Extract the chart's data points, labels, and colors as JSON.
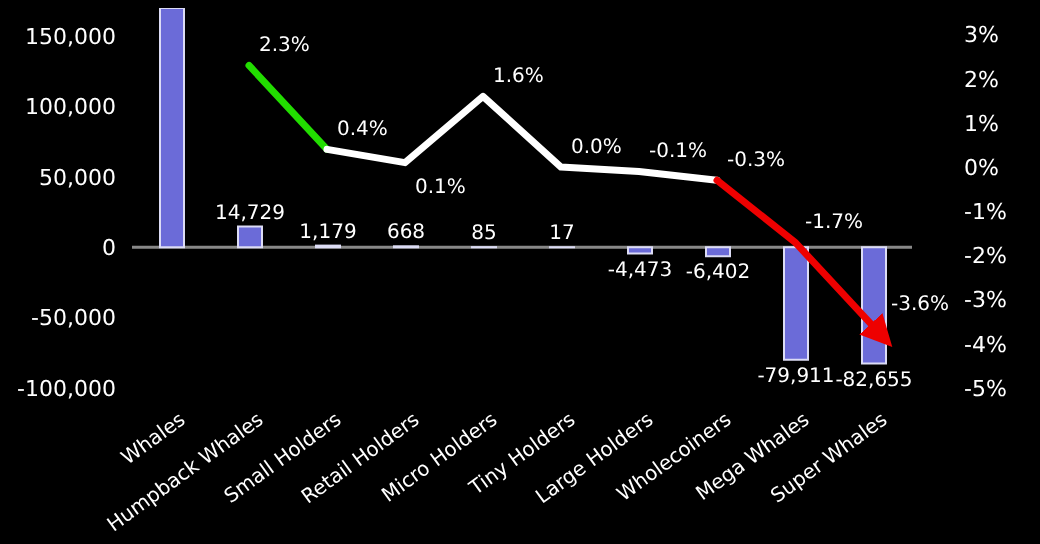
{
  "chart_data": {
    "type": "bar",
    "categories": [
      "Whales",
      "Humpback Whales",
      "Small Holders",
      "Retail Holders",
      "Micro Holders",
      "Tiny Holders",
      "Large Holders",
      "Wholecoiners",
      "Mega Whales",
      "Super Whales"
    ],
    "series": [
      {
        "color": "#6b6bd8",
        "values": [
          170000,
          14729,
          1179,
          668,
          85,
          17,
          -4473,
          -6402,
          -79911,
          -82655
        ],
        "value_labels": [
          null,
          "14,729",
          "1,179",
          "668",
          "85",
          "17",
          "-4,473",
          "-6,402",
          "-79,911",
          "-82,655"
        ]
      },
      {
        "type": "line",
        "axis": "y2",
        "color": "#22dd00",
        "values": [
          null,
          2.3,
          0.4,
          null,
          null,
          null,
          null,
          null,
          null,
          null
        ],
        "value_labels": [
          null,
          "2.3%",
          null,
          null,
          null,
          null,
          null,
          null,
          null,
          null
        ]
      },
      {
        "type": "line",
        "axis": "y2",
        "color": "#ffffff",
        "values": [
          null,
          null,
          0.4,
          0.1,
          1.6,
          0.0,
          -0.1,
          -0.3,
          null,
          null
        ],
        "value_labels": [
          null,
          null,
          "0.4%",
          "0.1%",
          "1.6%",
          "0.0%",
          "-0.1%",
          "-0.3%",
          null,
          null
        ]
      },
      {
        "type": "line",
        "axis": "y2",
        "color": "#ee0000",
        "values": [
          null,
          null,
          null,
          null,
          null,
          null,
          null,
          -0.3,
          -1.7,
          -3.6
        ],
        "value_labels": [
          null,
          null,
          null,
          null,
          null,
          null,
          null,
          null,
          "-1.7%",
          "-3.6%"
        ]
      }
    ],
    "ylim": [
      -100000,
      170000
    ],
    "yticks": [
      {
        "value": -100000,
        "label": "-100,000"
      },
      {
        "value": -50000,
        "label": "-50,000"
      },
      0,
      {
        "value": 50000,
        "label": "50,000"
      },
      {
        "value": 100000,
        "label": "100,000"
      },
      {
        "value": 150000,
        "label": "150,000"
      }
    ],
    "y2lim": [
      -5,
      3.6
    ],
    "y2ticks": [
      {
        "value": -5,
        "label": "-5%"
      },
      {
        "value": -4,
        "label": "-4%"
      },
      {
        "value": -3,
        "label": "-3%"
      },
      {
        "value": -2,
        "label": "-2%"
      },
      {
        "value": -1,
        "label": "-1%"
      },
      {
        "value": 0,
        "label": "0%"
      },
      {
        "value": 1,
        "label": "1%"
      },
      {
        "value": 2,
        "label": "2%"
      },
      {
        "value": 3,
        "label": "3%"
      }
    ],
    "ref_lines": [
      {
        "axis": "y",
        "value": 0,
        "color": "#888888"
      }
    ],
    "grid": false,
    "legend": false,
    "marker": "none"
  }
}
